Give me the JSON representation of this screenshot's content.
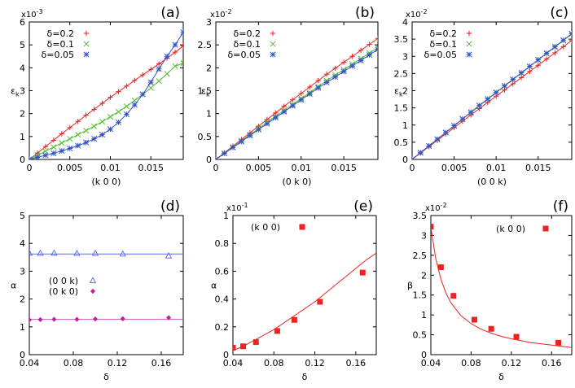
{
  "colors": {
    "red": "#ee2222",
    "green": "#55bb33",
    "blue": "#3355cc",
    "fit_blue": "#5577dd",
    "purple": "#bb2299",
    "fit_purple": "#cc55bb",
    "blue_triangle": "#5566ee"
  },
  "chart_data": [
    {
      "id": "a",
      "type": "line",
      "panel_label": "(a)",
      "xlabel": "(k 0 0)",
      "ylabel": "ε",
      "ylabel_sub": "k",
      "y_multiplier": "x10",
      "y_multiplier_exp": "-3",
      "xlim": [
        0,
        0.019
      ],
      "ylim": [
        0,
        6
      ],
      "xticks": [
        0,
        0.005,
        0.01,
        0.015
      ],
      "xtick_labels": [
        "0",
        "0.005",
        "0.01",
        "0.015"
      ],
      "yticks": [
        0,
        1,
        2,
        3,
        4,
        5,
        6
      ],
      "ytick_labels": [
        "0",
        "1",
        "2",
        "3",
        "4",
        "5",
        "6"
      ],
      "legend_position": "top-left",
      "series": [
        {
          "name": "δ=0.2",
          "color": "#ee2222",
          "marker": "plus",
          "x": [
            0,
            0.001,
            0.002,
            0.003,
            0.004,
            0.005,
            0.006,
            0.007,
            0.008,
            0.009,
            0.01,
            0.011,
            0.012,
            0.013,
            0.014,
            0.015,
            0.016,
            0.017,
            0.018,
            0.019
          ],
          "y": [
            0,
            0.28,
            0.56,
            0.84,
            1.12,
            1.39,
            1.66,
            1.93,
            2.19,
            2.45,
            2.71,
            2.96,
            3.2,
            3.45,
            3.69,
            3.93,
            4.17,
            4.42,
            4.68,
            4.95
          ],
          "fit_y": [
            0,
            0.28,
            0.56,
            0.84,
            1.12,
            1.39,
            1.66,
            1.93,
            2.19,
            2.45,
            2.71,
            2.96,
            3.2,
            3.45,
            3.69,
            3.93,
            4.17,
            4.42,
            4.68,
            4.95
          ]
        },
        {
          "name": "δ=0.1",
          "color": "#55bb33",
          "marker": "cross",
          "x": [
            0,
            0.001,
            0.002,
            0.003,
            0.004,
            0.005,
            0.006,
            0.007,
            0.008,
            0.009,
            0.01,
            0.011,
            0.012,
            0.013,
            0.014,
            0.015,
            0.016,
            0.017,
            0.018,
            0.019
          ],
          "y": [
            0,
            0.18,
            0.36,
            0.54,
            0.72,
            0.9,
            1.08,
            1.26,
            1.45,
            1.65,
            1.86,
            2.08,
            2.32,
            2.57,
            2.84,
            3.12,
            3.42,
            3.74,
            4.07,
            4.2
          ],
          "fit_y": [
            0,
            0.18,
            0.36,
            0.54,
            0.72,
            0.9,
            1.08,
            1.26,
            1.45,
            1.65,
            1.86,
            2.08,
            2.32,
            2.57,
            2.84,
            3.12,
            3.42,
            3.74,
            4.07,
            4.2
          ]
        },
        {
          "name": "δ=0.05",
          "color": "#3355cc",
          "marker": "star",
          "x": [
            0,
            0.001,
            0.002,
            0.003,
            0.004,
            0.005,
            0.006,
            0.007,
            0.008,
            0.009,
            0.01,
            0.011,
            0.012,
            0.013,
            0.014,
            0.015,
            0.016,
            0.017,
            0.018,
            0.019
          ],
          "y": [
            0,
            0.09,
            0.18,
            0.27,
            0.37,
            0.48,
            0.6,
            0.74,
            0.9,
            1.08,
            1.32,
            1.62,
            1.97,
            2.38,
            2.84,
            3.37,
            3.95,
            4.5,
            5.0,
            5.55
          ],
          "fit_y": [
            0,
            0.09,
            0.18,
            0.27,
            0.37,
            0.48,
            0.6,
            0.74,
            0.9,
            1.08,
            1.32,
            1.62,
            1.97,
            2.38,
            2.84,
            3.37,
            3.95,
            4.5,
            5.0,
            5.55
          ]
        }
      ]
    },
    {
      "id": "b",
      "type": "line",
      "panel_label": "(b)",
      "xlabel": "(0 k 0)",
      "ylabel": "ε",
      "ylabel_sub": "k",
      "y_multiplier": "x10",
      "y_multiplier_exp": "-2",
      "xlim": [
        0,
        0.019
      ],
      "ylim": [
        0,
        3
      ],
      "xticks": [
        0,
        0.005,
        0.01,
        0.015
      ],
      "xtick_labels": [
        "0",
        "0.005",
        "0.01",
        "0.015"
      ],
      "yticks": [
        0,
        0.5,
        1,
        1.5,
        2,
        2.5,
        3
      ],
      "ytick_labels": [
        "0",
        "0.5",
        "1",
        "1.5",
        "2",
        "2.5",
        "3"
      ],
      "legend_position": "top-left",
      "series": [
        {
          "name": "δ=0.2",
          "color": "#ee2222",
          "marker": "plus",
          "x": [
            0,
            0.001,
            0.002,
            0.003,
            0.004,
            0.005,
            0.006,
            0.007,
            0.008,
            0.009,
            0.01,
            0.011,
            0.012,
            0.013,
            0.014,
            0.015,
            0.016,
            0.017,
            0.018,
            0.019
          ],
          "y": [
            0,
            0.145,
            0.29,
            0.435,
            0.58,
            0.725,
            0.87,
            1.015,
            1.16,
            1.3,
            1.44,
            1.58,
            1.72,
            1.86,
            1.99,
            2.12,
            2.25,
            2.38,
            2.51,
            2.64
          ],
          "fit_y": [
            0,
            0.145,
            0.29,
            0.435,
            0.58,
            0.725,
            0.87,
            1.015,
            1.16,
            1.3,
            1.44,
            1.58,
            1.72,
            1.86,
            1.99,
            2.12,
            2.25,
            2.38,
            2.51,
            2.64
          ]
        },
        {
          "name": "δ=0.1",
          "color": "#55bb33",
          "marker": "cross",
          "x": [
            0,
            0.001,
            0.002,
            0.003,
            0.004,
            0.005,
            0.006,
            0.007,
            0.008,
            0.009,
            0.01,
            0.011,
            0.012,
            0.013,
            0.014,
            0.015,
            0.016,
            0.017,
            0.018,
            0.019
          ],
          "y": [
            0,
            0.135,
            0.27,
            0.405,
            0.54,
            0.675,
            0.81,
            0.94,
            1.07,
            1.2,
            1.33,
            1.46,
            1.59,
            1.72,
            1.84,
            1.96,
            2.08,
            2.2,
            2.32,
            2.44
          ],
          "fit_y": [
            0,
            0.135,
            0.27,
            0.405,
            0.54,
            0.675,
            0.81,
            0.94,
            1.07,
            1.2,
            1.33,
            1.46,
            1.59,
            1.72,
            1.84,
            1.96,
            2.08,
            2.2,
            2.32,
            2.44
          ]
        },
        {
          "name": "δ=0.05",
          "color": "#3355cc",
          "marker": "star",
          "x": [
            0,
            0.001,
            0.002,
            0.003,
            0.004,
            0.005,
            0.006,
            0.007,
            0.008,
            0.009,
            0.01,
            0.011,
            0.012,
            0.013,
            0.014,
            0.015,
            0.016,
            0.017,
            0.018,
            0.019
          ],
          "y": [
            0,
            0.13,
            0.26,
            0.39,
            0.52,
            0.65,
            0.78,
            0.91,
            1.04,
            1.17,
            1.3,
            1.43,
            1.56,
            1.68,
            1.8,
            1.92,
            2.04,
            2.16,
            2.28,
            2.4
          ],
          "fit_y": [
            0,
            0.13,
            0.26,
            0.39,
            0.52,
            0.65,
            0.78,
            0.91,
            1.04,
            1.17,
            1.3,
            1.43,
            1.56,
            1.68,
            1.8,
            1.92,
            2.04,
            2.16,
            2.28,
            2.4
          ]
        }
      ]
    },
    {
      "id": "c",
      "type": "line",
      "panel_label": "(c)",
      "xlabel": "(0 0 k)",
      "ylabel": "ε",
      "ylabel_sub": "k",
      "y_multiplier": "x10",
      "y_multiplier_exp": "-2",
      "xlim": [
        0,
        0.019
      ],
      "ylim": [
        0,
        4
      ],
      "xticks": [
        0,
        0.005,
        0.01,
        0.015
      ],
      "xtick_labels": [
        "0",
        "0.005",
        "0.01",
        "0.015"
      ],
      "yticks": [
        0,
        0.5,
        1,
        1.5,
        2,
        2.5,
        3,
        3.5,
        4
      ],
      "ytick_labels": [
        "0",
        "0.5",
        "1",
        "1.5",
        "2",
        "2.5",
        "3",
        "3.5",
        "4"
      ],
      "legend_position": "top-left",
      "series": [
        {
          "name": "δ=0.2",
          "color": "#ee2222",
          "marker": "plus",
          "x": [
            0,
            0.001,
            0.002,
            0.003,
            0.004,
            0.005,
            0.006,
            0.007,
            0.008,
            0.009,
            0.01,
            0.011,
            0.012,
            0.013,
            0.014,
            0.015,
            0.016,
            0.017,
            0.018,
            0.019
          ],
          "y": [
            0,
            0.185,
            0.37,
            0.555,
            0.74,
            0.925,
            1.11,
            1.295,
            1.48,
            1.66,
            1.84,
            2.02,
            2.2,
            2.38,
            2.56,
            2.74,
            2.92,
            3.1,
            3.28,
            3.46
          ],
          "fit_y": [
            0,
            0.185,
            0.37,
            0.555,
            0.74,
            0.925,
            1.11,
            1.295,
            1.48,
            1.66,
            1.84,
            2.02,
            2.2,
            2.38,
            2.56,
            2.74,
            2.92,
            3.1,
            3.28,
            3.46
          ]
        },
        {
          "name": "δ=0.1",
          "color": "#55bb33",
          "marker": "cross",
          "x": [
            0,
            0.001,
            0.002,
            0.003,
            0.004,
            0.005,
            0.006,
            0.007,
            0.008,
            0.009,
            0.01,
            0.011,
            0.012,
            0.013,
            0.014,
            0.015,
            0.016,
            0.017,
            0.018,
            0.019
          ],
          "y": [
            0,
            0.195,
            0.39,
            0.585,
            0.78,
            0.975,
            1.17,
            1.365,
            1.56,
            1.75,
            1.94,
            2.13,
            2.32,
            2.51,
            2.7,
            2.89,
            3.08,
            3.27,
            3.46,
            3.65
          ],
          "fit_y": [
            0,
            0.195,
            0.39,
            0.585,
            0.78,
            0.975,
            1.17,
            1.365,
            1.56,
            1.75,
            1.94,
            2.13,
            2.32,
            2.51,
            2.7,
            2.89,
            3.08,
            3.27,
            3.46,
            3.65
          ]
        },
        {
          "name": "δ=0.05",
          "color": "#3355cc",
          "marker": "star",
          "x": [
            0,
            0.001,
            0.002,
            0.003,
            0.004,
            0.005,
            0.006,
            0.007,
            0.008,
            0.009,
            0.01,
            0.011,
            0.012,
            0.013,
            0.014,
            0.015,
            0.016,
            0.017,
            0.018,
            0.019
          ],
          "y": [
            0,
            0.197,
            0.394,
            0.59,
            0.786,
            0.982,
            1.178,
            1.374,
            1.57,
            1.76,
            1.95,
            2.14,
            2.33,
            2.52,
            2.71,
            2.9,
            3.09,
            3.28,
            3.47,
            3.66
          ],
          "fit_y": [
            0,
            0.197,
            0.394,
            0.59,
            0.786,
            0.982,
            1.178,
            1.374,
            1.57,
            1.76,
            1.95,
            2.14,
            2.33,
            2.52,
            2.71,
            2.9,
            3.09,
            3.28,
            3.47,
            3.66
          ]
        }
      ]
    },
    {
      "id": "d",
      "type": "scatter",
      "panel_label": "(d)",
      "xlabel": "δ",
      "ylabel": "α",
      "xlim": [
        0.04,
        0.18
      ],
      "ylim": [
        0,
        5
      ],
      "xticks": [
        0.04,
        0.08,
        0.12,
        0.16
      ],
      "xtick_labels": [
        "0.04",
        "0.08",
        "0.12",
        "0.16"
      ],
      "yticks": [
        0,
        1,
        2,
        3,
        4,
        5
      ],
      "ytick_labels": [
        "0",
        "1",
        "2",
        "3",
        "4",
        "5"
      ],
      "legend_position": "middle-left",
      "series": [
        {
          "name": "(0 0 k)",
          "color": "#5566ee",
          "marker": "triangle",
          "x": [
            0.04,
            0.05,
            0.0625,
            0.0833,
            0.1,
            0.125,
            0.1667
          ],
          "y": [
            3.65,
            3.65,
            3.65,
            3.64,
            3.64,
            3.62,
            3.55
          ],
          "fit": {
            "kind": "constant",
            "value": 3.62,
            "color": "#5577dd"
          }
        },
        {
          "name": "(0 k 0)",
          "color": "#bb2299",
          "marker": "diamond",
          "x": [
            0.04,
            0.05,
            0.0625,
            0.0833,
            0.1,
            0.125,
            0.1667
          ],
          "y": [
            1.25,
            1.26,
            1.27,
            1.27,
            1.28,
            1.29,
            1.33
          ],
          "fit": {
            "kind": "constant",
            "value": 1.27,
            "color": "#cc55bb"
          }
        }
      ]
    },
    {
      "id": "e",
      "type": "scatter",
      "panel_label": "(e)",
      "xlabel": "δ",
      "ylabel": "α",
      "y_multiplier": "x10",
      "y_multiplier_exp": "-1",
      "xlim": [
        0.04,
        0.18
      ],
      "ylim": [
        0,
        1
      ],
      "xticks": [
        0.04,
        0.08,
        0.12,
        0.16
      ],
      "xtick_labels": [
        "0.04",
        "0.08",
        "0.12",
        "0.16"
      ],
      "yticks": [
        0,
        0.2,
        0.4,
        0.6,
        0.8,
        1
      ],
      "ytick_labels": [
        "0",
        "0.2",
        "0.4",
        "0.6",
        "0.8",
        "1"
      ],
      "legend_position": "top-left",
      "series": [
        {
          "name": "(k 0 0)",
          "color": "#ee2222",
          "marker": "square",
          "x": [
            0.04,
            0.05,
            0.0625,
            0.0833,
            0.1,
            0.125,
            0.1667
          ],
          "y": [
            0.05,
            0.06,
            0.09,
            0.17,
            0.25,
            0.38,
            0.59
          ],
          "fit": {
            "kind": "curve",
            "x": [
              0.04,
              0.05,
              0.06,
              0.07,
              0.08,
              0.09,
              0.1,
              0.11,
              0.12,
              0.13,
              0.14,
              0.15,
              0.16,
              0.17,
              0.18
            ],
            "y": [
              0.03,
              0.06,
              0.1,
              0.14,
              0.18,
              0.23,
              0.28,
              0.33,
              0.38,
              0.44,
              0.5,
              0.56,
              0.62,
              0.68,
              0.73
            ],
            "color": "#ee2222"
          }
        }
      ]
    },
    {
      "id": "f",
      "type": "scatter",
      "panel_label": "(f)",
      "xlabel": "δ",
      "ylabel": "β",
      "y_multiplier": "x10",
      "y_multiplier_exp": "-2",
      "xlim": [
        0.04,
        0.18
      ],
      "ylim": [
        0,
        3.5
      ],
      "xticks": [
        0.04,
        0.08,
        0.12,
        0.16
      ],
      "xtick_labels": [
        "0.04",
        "0.08",
        "0.12",
        "0.16"
      ],
      "yticks": [
        0,
        0.5,
        1,
        1.5,
        2,
        2.5,
        3,
        3.5
      ],
      "ytick_labels": [
        "0",
        "0.5",
        "1",
        "1.5",
        "2",
        "2.5",
        "3",
        "3.5"
      ],
      "legend_position": "top-right",
      "series": [
        {
          "name": "(k 0 0)",
          "color": "#ee2222",
          "marker": "square",
          "x": [
            0.04,
            0.05,
            0.0625,
            0.0833,
            0.1,
            0.125,
            0.1667
          ],
          "y": [
            3.22,
            2.2,
            1.48,
            0.88,
            0.65,
            0.45,
            0.3
          ],
          "fit": {
            "kind": "curve",
            "x": [
              0.04,
              0.045,
              0.05,
              0.055,
              0.06,
              0.07,
              0.08,
              0.09,
              0.1,
              0.11,
              0.12,
              0.13,
              0.14,
              0.15,
              0.16,
              0.17,
              0.18
            ],
            "y": [
              3.2,
              2.4,
              1.9,
              1.55,
              1.3,
              0.98,
              0.78,
              0.64,
              0.54,
              0.46,
              0.4,
              0.35,
              0.3,
              0.27,
              0.24,
              0.21,
              0.18
            ],
            "color": "#ee2222"
          }
        }
      ]
    }
  ]
}
